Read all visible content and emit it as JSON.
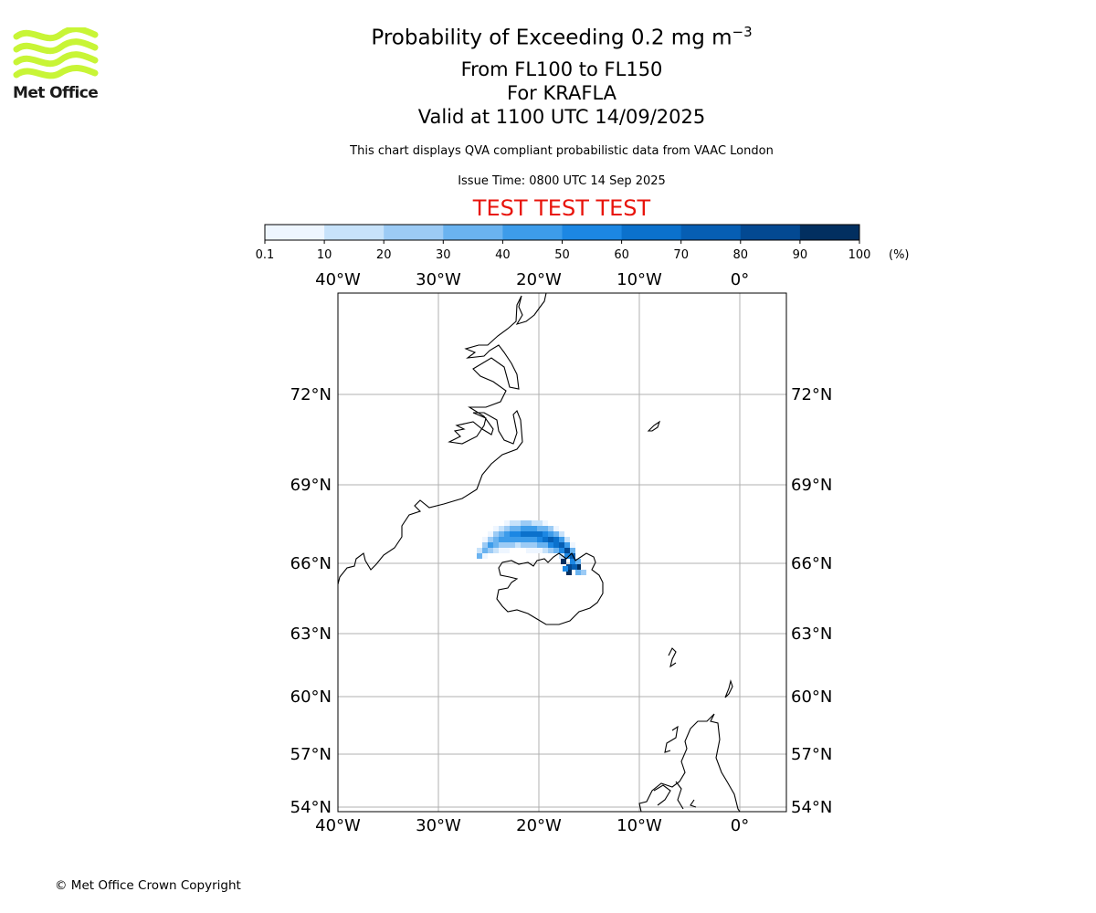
{
  "logo": {
    "text": "Met Office",
    "brand_color": "#c8f536"
  },
  "header": {
    "title_prefix": "Probability of Exceeding 0.2 mg m",
    "title_superscript": "−3",
    "level_range": "From FL100 to FL150",
    "location": "For KRAFLA",
    "valid_time": "Valid at 1100 UTC 14/09/2025",
    "description": "This chart displays QVA compliant probabilistic data from VAAC London",
    "issue_time": "Issue Time: 0800 UTC 14 Sep 2025",
    "test_banner": "TEST TEST TEST",
    "test_color": "#e8140c"
  },
  "colorbar": {
    "ticks": [
      "0.1",
      "10",
      "20",
      "30",
      "40",
      "50",
      "60",
      "70",
      "80",
      "90",
      "100"
    ],
    "unit": "(%)",
    "colors": [
      "#eef6ff",
      "#c7e2fa",
      "#9ccbf5",
      "#6ab3f0",
      "#3d9cea",
      "#1c87e3",
      "#0b71cc",
      "#065eb3",
      "#034992",
      "#022f60"
    ]
  },
  "map": {
    "lon_labels": [
      "40°W",
      "30°W",
      "20°W",
      "10°W",
      "0°"
    ],
    "lat_labels": [
      "72°N",
      "69°N",
      "66°N",
      "63°N",
      "60°N",
      "57°N",
      "54°N"
    ],
    "grid_color": "#b0b0b0"
  },
  "footer": {
    "copyright": "© Met Office Crown Copyright"
  }
}
